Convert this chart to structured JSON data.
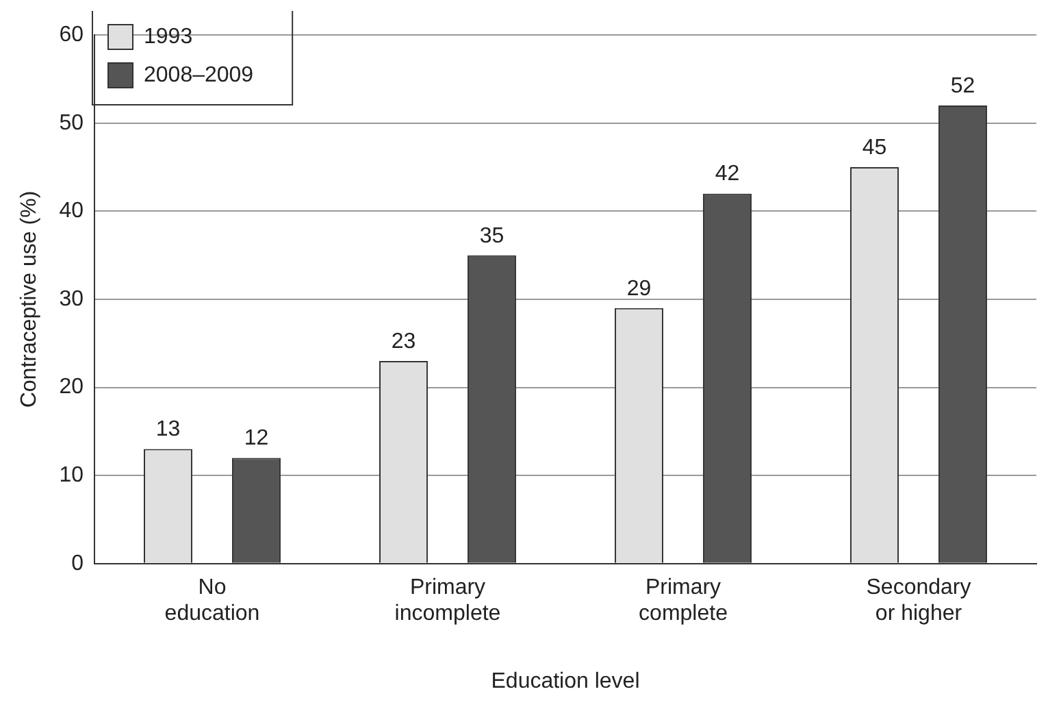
{
  "chart_data": {
    "type": "bar",
    "xlabel": "Education level",
    "ylabel": "Contraceptive use (%)",
    "categories": [
      "No education",
      "Primary incomplete",
      "Primary complete",
      "Secondary or higher"
    ],
    "series": [
      {
        "name": "1993",
        "color": "#e0e0e0",
        "values": [
          13,
          23,
          29,
          45
        ]
      },
      {
        "name": "2008–2009",
        "color": "#555555",
        "values": [
          12,
          35,
          42,
          52
        ]
      }
    ],
    "ylim": [
      0,
      60
    ],
    "yticks": [
      0,
      10,
      20,
      30,
      40,
      50,
      60
    ],
    "grid": "y",
    "legend": "top left",
    "data_labels": true
  }
}
